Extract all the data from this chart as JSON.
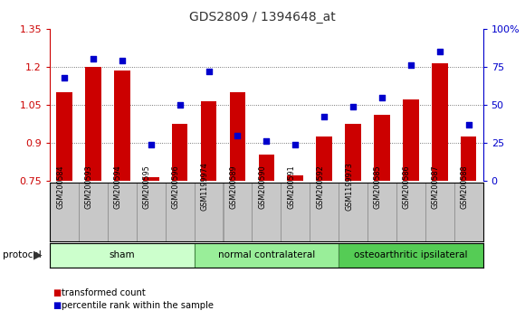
{
  "title": "GDS2809 / 1394648_at",
  "samples": [
    "GSM200584",
    "GSM200593",
    "GSM200594",
    "GSM200595",
    "GSM200596",
    "GSM1199974",
    "GSM200589",
    "GSM200590",
    "GSM200591",
    "GSM200592",
    "GSM1199973",
    "GSM200585",
    "GSM200586",
    "GSM200587",
    "GSM200588"
  ],
  "bar_values": [
    1.1,
    1.2,
    1.185,
    0.765,
    0.975,
    1.065,
    1.1,
    0.855,
    0.77,
    0.925,
    0.975,
    1.01,
    1.07,
    1.215,
    0.925
  ],
  "scatter_values": [
    68,
    80,
    79,
    24,
    50,
    72,
    30,
    26,
    24,
    42,
    49,
    55,
    76,
    85,
    37
  ],
  "ylim_left": [
    0.75,
    1.35
  ],
  "ylim_right": [
    0,
    100
  ],
  "yticks_left": [
    0.75,
    0.9,
    1.05,
    1.2,
    1.35
  ],
  "yticks_right": [
    0,
    25,
    50,
    75,
    100
  ],
  "ytick_labels_right": [
    "0",
    "25",
    "50",
    "75",
    "100%"
  ],
  "bar_color": "#cc0000",
  "scatter_color": "#0000cc",
  "groups": [
    {
      "label": "sham",
      "start": 0,
      "end": 5,
      "color": "#ccffcc"
    },
    {
      "label": "normal contralateral",
      "start": 5,
      "end": 10,
      "color": "#99ee99"
    },
    {
      "label": "osteoarthritic ipsilateral",
      "start": 10,
      "end": 15,
      "color": "#55cc55"
    }
  ],
  "protocol_label": "protocol",
  "legend1_label": "transformed count",
  "legend2_label": "percentile rank within the sample",
  "grid_color": "#555555",
  "tick_area_color": "#c8c8c8",
  "plot_bg_color": "#ffffff",
  "title_color": "#333333",
  "title_fontsize": 10
}
